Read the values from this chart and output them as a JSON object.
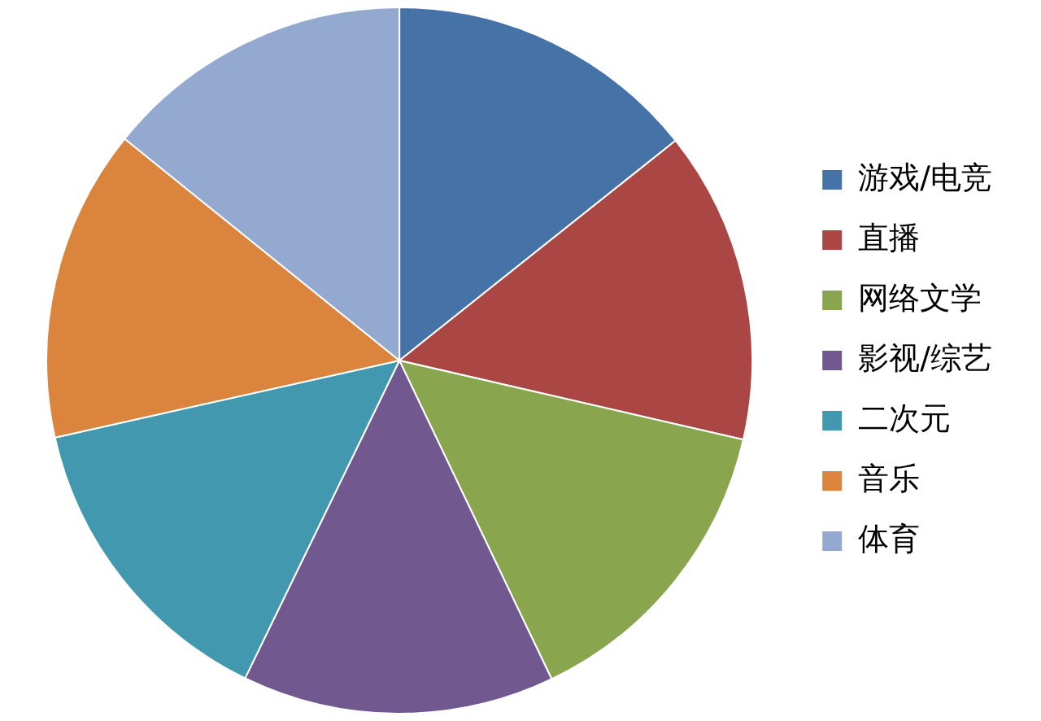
{
  "chart_data": {
    "type": "pie",
    "categories": [
      "游戏/电竞",
      "直播",
      "网络文学",
      "影视/综艺",
      "二次元",
      "音乐",
      "体育"
    ],
    "values": [
      14.3,
      14.3,
      14.3,
      14.3,
      14.3,
      14.3,
      14.2
    ],
    "colors": [
      "#4572a7",
      "#aa4643",
      "#89a54e",
      "#71588f",
      "#4198af",
      "#db843d",
      "#93a9cf"
    ],
    "legend": "right"
  }
}
